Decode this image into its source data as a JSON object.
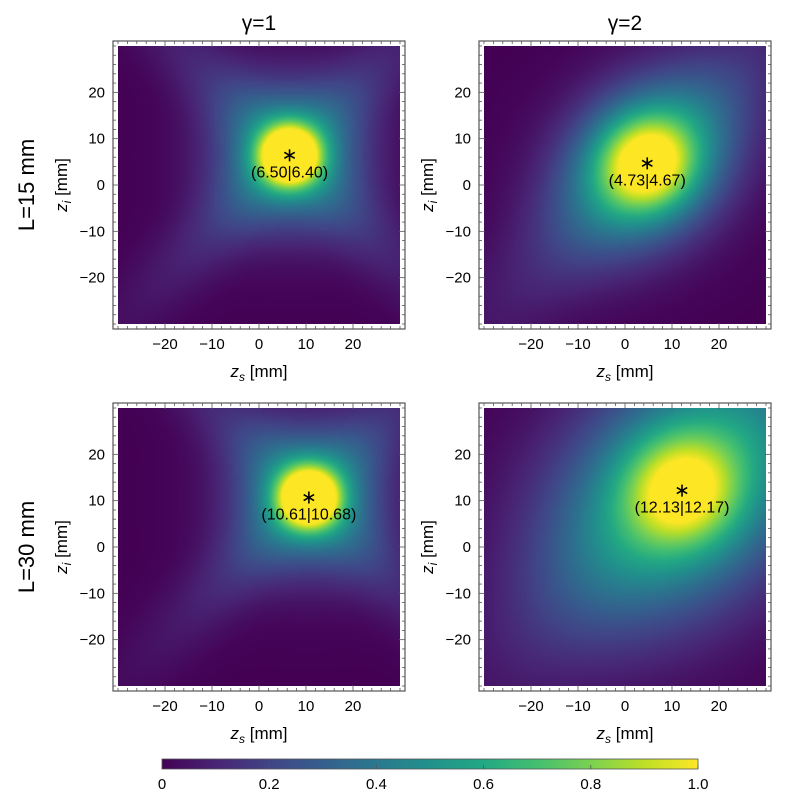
{
  "figure": {
    "column_titles": [
      "γ=1",
      "γ=2"
    ],
    "row_labels": [
      "L=15 mm",
      "L=30 mm"
    ],
    "colorbar": {
      "ticks": [
        0,
        0.2,
        0.4,
        0.6,
        0.8,
        1.0
      ],
      "tick_labels": [
        "0",
        "0.2",
        "0.4",
        "0.6",
        "0.8",
        "1.0"
      ],
      "range": [
        0,
        1
      ]
    },
    "colormap": [
      "#440154",
      "#3b528b",
      "#21918c",
      "#5ec962",
      "#fde725"
    ]
  },
  "chart_data": [
    {
      "type": "heatmap",
      "title": "",
      "xlabel": "z_s [mm]",
      "ylabel": "z_i [mm]",
      "xlim": [
        -30,
        30
      ],
      "ylim": [
        -30,
        30
      ],
      "xticks": [
        -20,
        -10,
        0,
        10,
        20
      ],
      "yticks": [
        -20,
        -10,
        0,
        10,
        20
      ],
      "peak": {
        "zs": 6.5,
        "zi": 6.4,
        "label": "(6.50|6.40)"
      },
      "shape": "cross"
    },
    {
      "type": "heatmap",
      "title": "",
      "xlabel": "z_s [mm]",
      "ylabel": "z_i [mm]",
      "xlim": [
        -30,
        30
      ],
      "ylim": [
        -30,
        30
      ],
      "xticks": [
        -20,
        -10,
        0,
        10,
        20
      ],
      "yticks": [
        -20,
        -10,
        0,
        10,
        20
      ],
      "peak": {
        "zs": 4.73,
        "zi": 4.67,
        "label": "(4.73|4.67)"
      },
      "shape": "broad"
    },
    {
      "type": "heatmap",
      "title": "",
      "xlabel": "z_s [mm]",
      "ylabel": "z_i [mm]",
      "xlim": [
        -30,
        30
      ],
      "ylim": [
        -30,
        30
      ],
      "xticks": [
        -20,
        -10,
        0,
        10,
        20
      ],
      "yticks": [
        -20,
        -10,
        0,
        10,
        20
      ],
      "peak": {
        "zs": 10.61,
        "zi": 10.68,
        "label": "(10.61|10.68)"
      },
      "shape": "cross"
    },
    {
      "type": "heatmap",
      "title": "",
      "xlabel": "z_s [mm]",
      "ylabel": "z_i [mm]",
      "xlim": [
        -30,
        30
      ],
      "ylim": [
        -30,
        30
      ],
      "xticks": [
        -20,
        -10,
        0,
        10,
        20
      ],
      "yticks": [
        -20,
        -10,
        0,
        10,
        20
      ],
      "peak": {
        "zs": 12.13,
        "zi": 12.17,
        "label": "(12.13|12.17)"
      },
      "shape": "broad-wide"
    }
  ]
}
